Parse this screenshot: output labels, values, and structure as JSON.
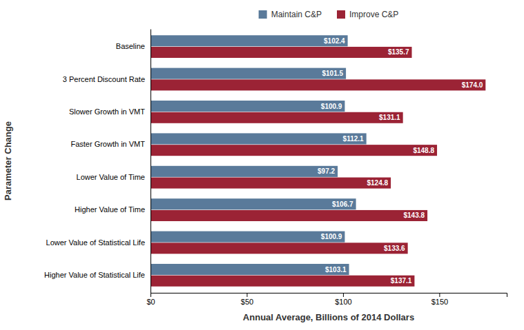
{
  "chart_data": {
    "type": "bar",
    "orientation": "horizontal",
    "categories": [
      "Baseline",
      "3 Percent Discount Rate",
      "Slower Growth in VMT",
      "Faster Growth in VMT",
      "Lower Value of Time",
      "Higher Value of Time",
      "Lower Value of Statistical Life",
      "Higher Value of Statistical Life"
    ],
    "series": [
      {
        "name": "Maintain C&P",
        "color": "#5a7a9a",
        "values": [
          102.4,
          101.5,
          100.9,
          112.1,
          97.2,
          106.7,
          100.9,
          103.1
        ],
        "value_labels": [
          "$102.4",
          "$101.5",
          "$100.9",
          "$112.1",
          "$97.2",
          "$106.7",
          "$100.9",
          "$103.1"
        ]
      },
      {
        "name": "Improve C&P",
        "color": "#9b2335",
        "values": [
          135.7,
          174.0,
          131.1,
          148.8,
          124.8,
          143.8,
          133.6,
          137.1
        ],
        "value_labels": [
          "$135.7",
          "$174.0",
          "$131.1",
          "$148.8",
          "$124.8",
          "$143.8",
          "$133.6",
          "$137.1"
        ]
      }
    ],
    "xlabel": "Annual Average, Billions of 2014 Dollars",
    "ylabel": "Parameter Change",
    "xlim": [
      0,
      185
    ],
    "xticks": [
      {
        "value": 0,
        "label": "$0"
      },
      {
        "value": 50,
        "label": "$50"
      },
      {
        "value": 100,
        "label": "$100"
      },
      {
        "value": 150,
        "label": "$150"
      }
    ],
    "data_labels": true,
    "legend": "top",
    "grid": false
  }
}
